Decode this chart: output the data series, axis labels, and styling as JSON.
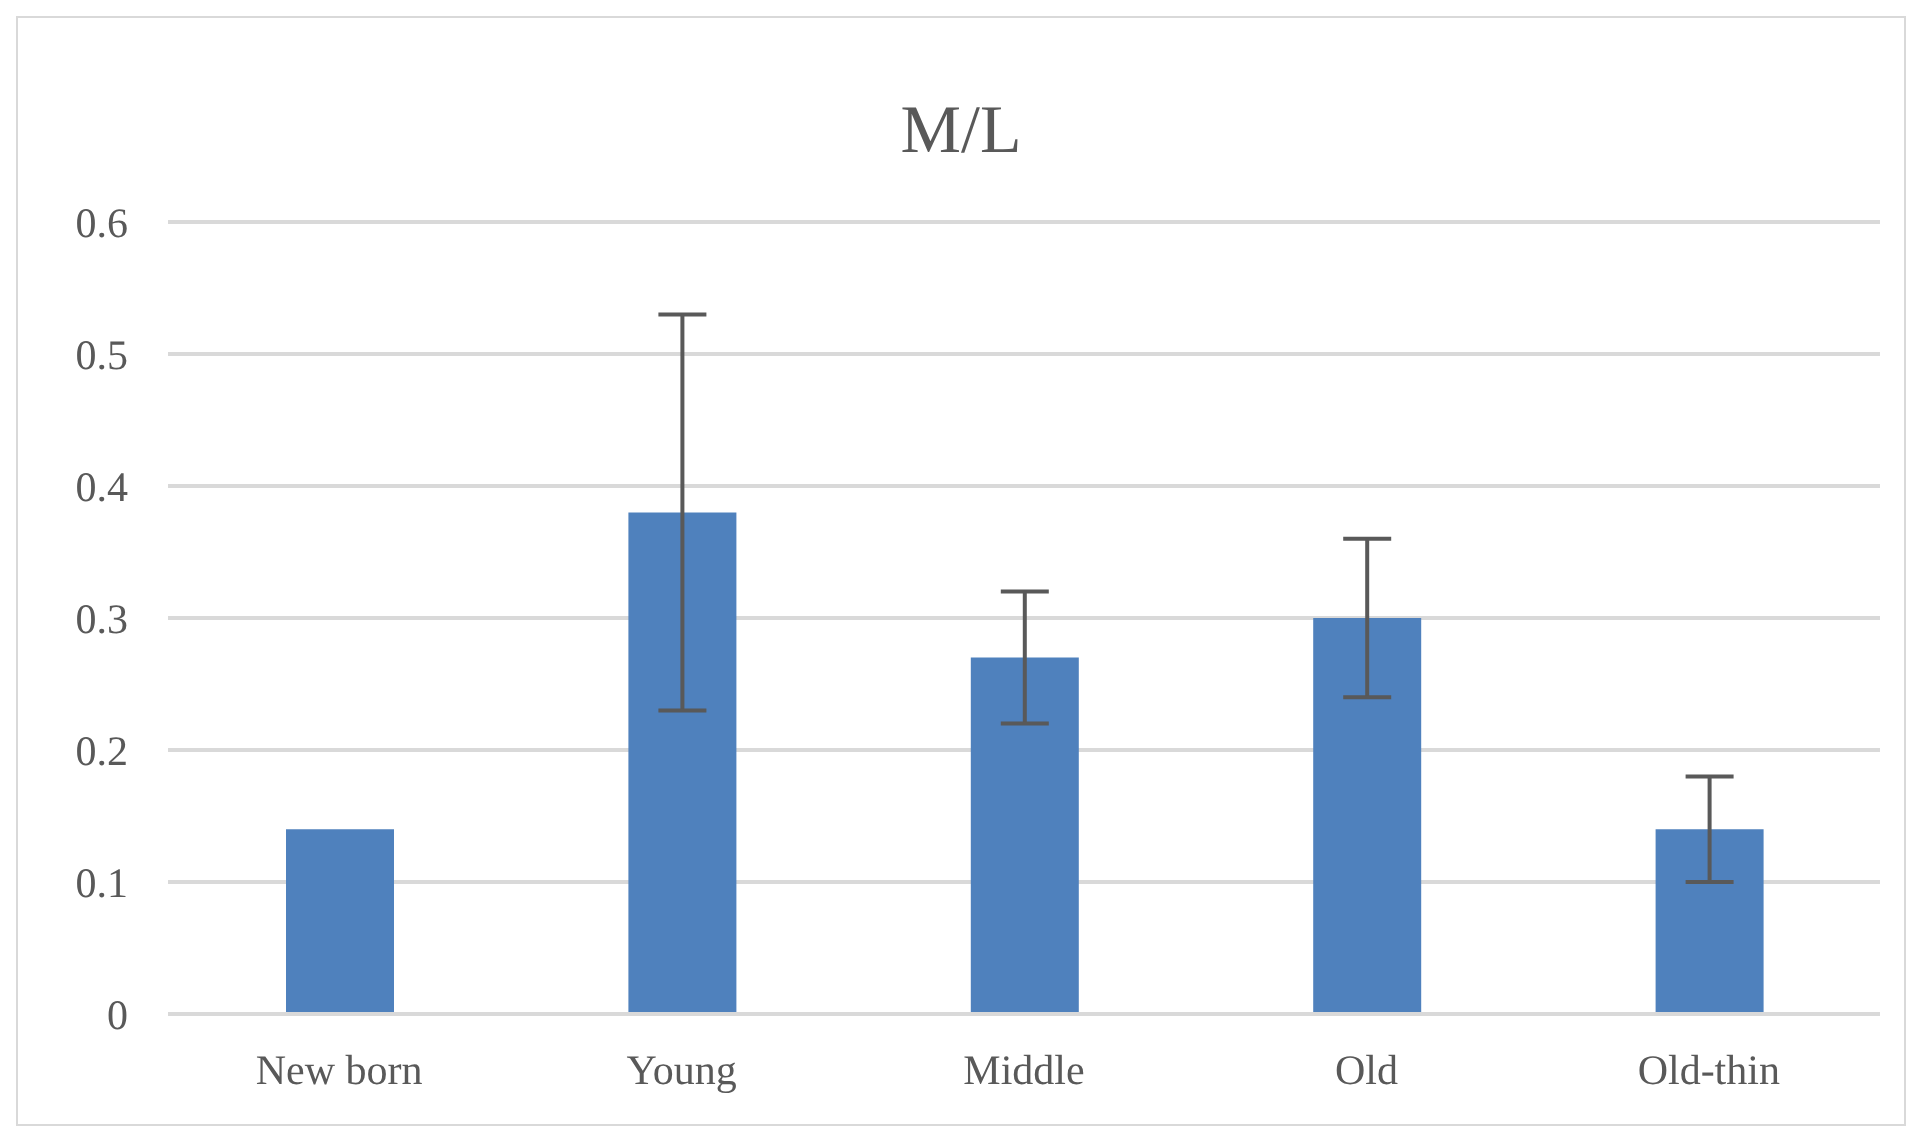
{
  "chart_data": {
    "type": "bar",
    "title": "M/L",
    "categories": [
      "New born",
      "Young",
      "Middle",
      "Old",
      "Old-thin"
    ],
    "values": [
      0.14,
      0.38,
      0.27,
      0.3,
      0.14
    ],
    "errors": [
      null,
      0.15,
      0.05,
      0.06,
      0.04
    ],
    "color": "#4f81bd",
    "ylim": [
      0,
      0.6
    ],
    "yticks": [
      0,
      0.1,
      0.2,
      0.3,
      0.4,
      0.5,
      0.6
    ],
    "grid": "y",
    "legend": false
  }
}
